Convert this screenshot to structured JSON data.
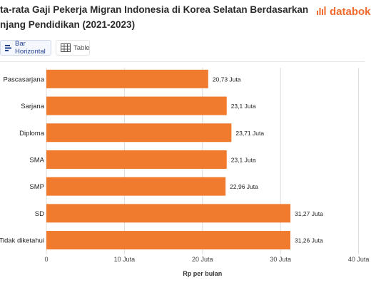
{
  "header": {
    "title_line1": "ta-rata Gaji Pekerja Migran Indonesia di Korea Selatan Berdasarkan",
    "title_line2": "njang Pendidikan (2021-2023)",
    "brand": "databok"
  },
  "tabs": [
    {
      "label": "Bar Horizontal",
      "active": true,
      "icon": "bar-chart-icon"
    },
    {
      "label": "Table",
      "active": false,
      "icon": "table-icon"
    }
  ],
  "colors": {
    "bar": "#f07a2d",
    "grid": "#dcdcdc",
    "brand": "#ef6b2e",
    "tab_accent": "#1f3f8f"
  },
  "chart_data": {
    "type": "bar",
    "orientation": "horizontal",
    "categories": [
      "Pascasarjana",
      "Sarjana",
      "Diploma",
      "SMA",
      "SMP",
      "SD",
      "Tidak diketahui"
    ],
    "values": [
      20.73,
      23.1,
      23.71,
      23.1,
      22.96,
      31.27,
      31.26
    ],
    "value_labels": [
      "20,73 Juta",
      "23,1 Juta",
      "23,71 Juta",
      "23,1 Juta",
      "22,96 Juta",
      "31,27 Juta",
      "31,26 Juta"
    ],
    "x_ticks": [
      0,
      10,
      20,
      30,
      40
    ],
    "x_tick_labels": [
      "0",
      "10 Juta",
      "20 Juta",
      "30 Juta",
      "40 Juta"
    ],
    "xlim": [
      0,
      40
    ],
    "xlabel": "Rp per bulan",
    "ylabel": "",
    "grid": true
  }
}
